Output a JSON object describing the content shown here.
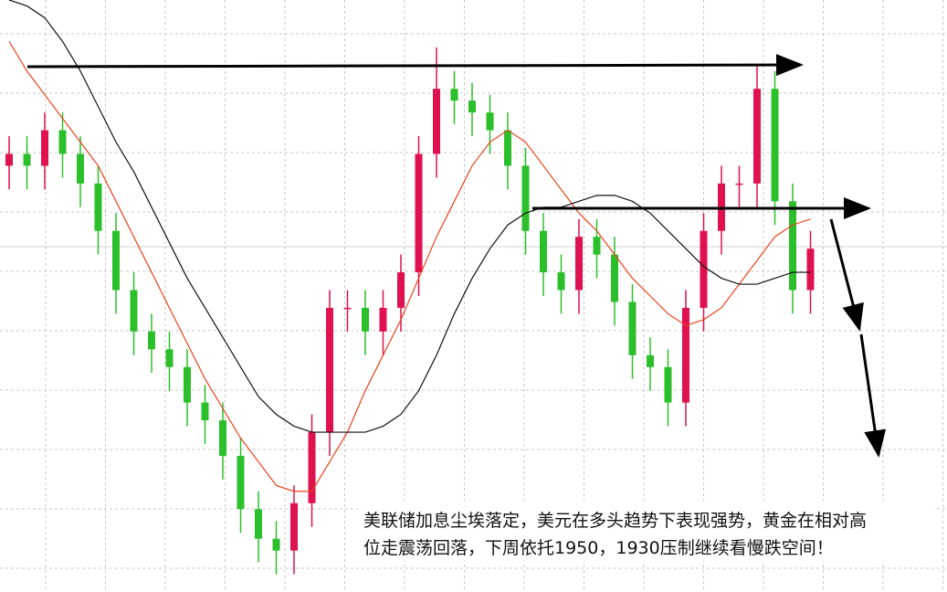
{
  "chart_data": {
    "type": "candlestick",
    "ylim": [
      0,
      100
    ],
    "up_color": "#e0114f",
    "down_color": "#2bc02b",
    "grid": true,
    "open": [
      72,
      74,
      72,
      78,
      74,
      69,
      61,
      51,
      44,
      41,
      38,
      32,
      29,
      23,
      14,
      9,
      7,
      15,
      27,
      48,
      48,
      44,
      48,
      54,
      74,
      85,
      83,
      81,
      78,
      72,
      61,
      54,
      51,
      60,
      57,
      49,
      40,
      38,
      32,
      48,
      61,
      69,
      69,
      85,
      66,
      51
    ],
    "high": [
      77,
      77,
      81,
      81,
      77,
      72,
      64,
      54,
      47,
      44,
      41,
      35,
      32,
      26,
      17,
      12,
      18,
      30,
      51,
      51,
      51,
      51,
      57,
      77,
      92,
      88,
      86,
      84,
      81,
      75,
      64,
      57,
      63,
      63,
      60,
      52,
      43,
      41,
      51,
      64,
      72,
      72,
      89,
      88,
      69,
      61
    ],
    "low": [
      68,
      68,
      68,
      70,
      65,
      57,
      47,
      40,
      37,
      34,
      28,
      25,
      19,
      10,
      5,
      3,
      3,
      11,
      23,
      44,
      40,
      40,
      44,
      50,
      70,
      79,
      77,
      74,
      68,
      57,
      50,
      47,
      47,
      53,
      45,
      36,
      34,
      28,
      28,
      44,
      57,
      65,
      65,
      62,
      47,
      47
    ],
    "close": [
      74,
      72,
      78,
      74,
      69,
      61,
      51,
      44,
      41,
      38,
      32,
      29,
      23,
      14,
      9,
      7,
      15,
      27,
      48,
      48,
      44,
      48,
      54,
      74,
      85,
      83,
      81,
      78,
      72,
      61,
      54,
      51,
      60,
      57,
      49,
      40,
      38,
      32,
      48,
      61,
      69,
      69,
      85,
      66,
      51,
      58
    ],
    "series": [
      {
        "color": "#e8431a",
        "values": [
          93,
          88,
          84,
          80,
          76,
          72,
          66,
          60,
          54,
          48,
          42,
          36,
          31,
          26,
          22,
          18,
          17,
          17,
          22,
          27,
          34,
          40,
          46,
          53,
          60,
          66,
          72,
          76,
          78,
          76,
          72,
          68,
          64,
          61,
          57,
          53,
          50,
          47,
          45,
          46,
          48,
          52,
          56,
          60,
          62,
          63
        ]
      },
      {
        "color": "#111111",
        "values": [
          100,
          99,
          97,
          93,
          88,
          82,
          76,
          71,
          65,
          59,
          53,
          48,
          43,
          38,
          33,
          30,
          28,
          27,
          27,
          27,
          27,
          28,
          30,
          34,
          40,
          47,
          53,
          58,
          62,
          64,
          65,
          65,
          66,
          67,
          67,
          66,
          64,
          61,
          58,
          55,
          53,
          52,
          52,
          53,
          54,
          54
        ]
      }
    ],
    "annotation": [
      "美联储加息尘埃落定，美元在多头趋势下表现强势，黄金在相对高",
      "位走震荡回落，下周依托1950，1930压制继续看慢跌空间！"
    ]
  }
}
